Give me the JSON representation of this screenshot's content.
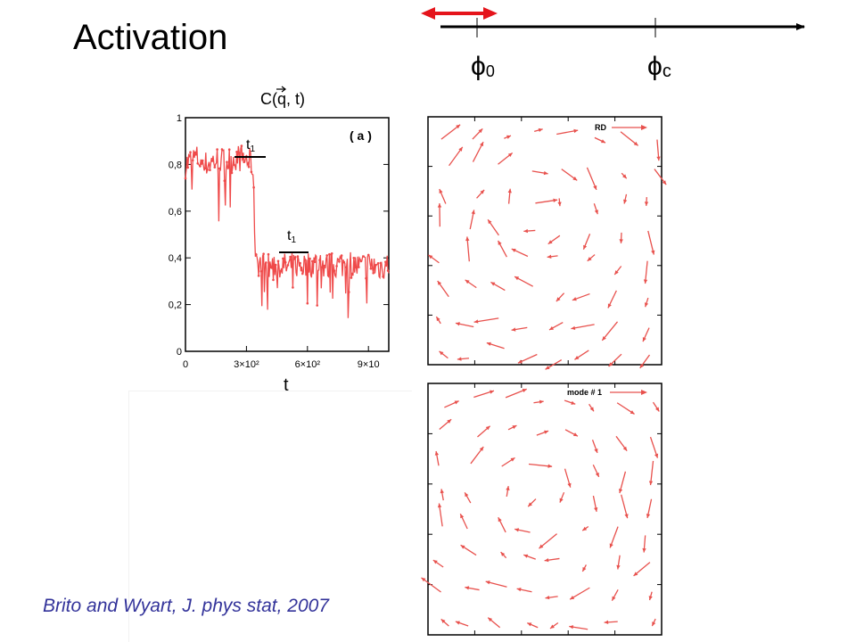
{
  "slide": {
    "title": "Activation",
    "citation": "Brito and Wyart, J. phys stat, 2007",
    "colors": {
      "accent": "#e5141b",
      "plot_red": "#ef4a4a",
      "citation": "#33339a",
      "axis": "#000000"
    }
  },
  "phi_axis": {
    "labels": {
      "phi0": "ϕ",
      "phi0_sub": "0",
      "phic": "ϕ",
      "phic_sub": "c"
    }
  },
  "ct_plot": {
    "ylabel": "C(q, t)",
    "xlabel": "t",
    "panel_label": "( a )",
    "plateau_label_1": "t",
    "plateau_label_1_sub": "1",
    "plateau_label_2": "t",
    "plateau_label_2_sub": "1",
    "yticks": [
      "0",
      "0,2",
      "0,4",
      "0,6",
      "0,8",
      "1"
    ],
    "xticks": [
      "0",
      "3×10²",
      "6×10²",
      "9×10"
    ]
  },
  "flow_top": {
    "legend": "RD"
  },
  "flow_bottom": {
    "legend": "mode # 1"
  },
  "chart_data": {
    "type": "line",
    "title": "",
    "xlabel": "t",
    "ylabel": "C(q, t)",
    "xlim": [
      0,
      1000
    ],
    "ylim": [
      0,
      1
    ],
    "series": [
      {
        "x": [
          0,
          50,
          100,
          150,
          200,
          250,
          300,
          330,
          345,
          360,
          400,
          450,
          500,
          550,
          600,
          650,
          700,
          750,
          800,
          850,
          900,
          950,
          1000
        ],
        "y": [
          0.8,
          0.83,
          0.8,
          0.82,
          0.81,
          0.83,
          0.82,
          0.8,
          0.42,
          0.38,
          0.36,
          0.37,
          0.36,
          0.37,
          0.37,
          0.38,
          0.36,
          0.37,
          0.38,
          0.36,
          0.37,
          0.36,
          0.37
        ]
      }
    ]
  }
}
